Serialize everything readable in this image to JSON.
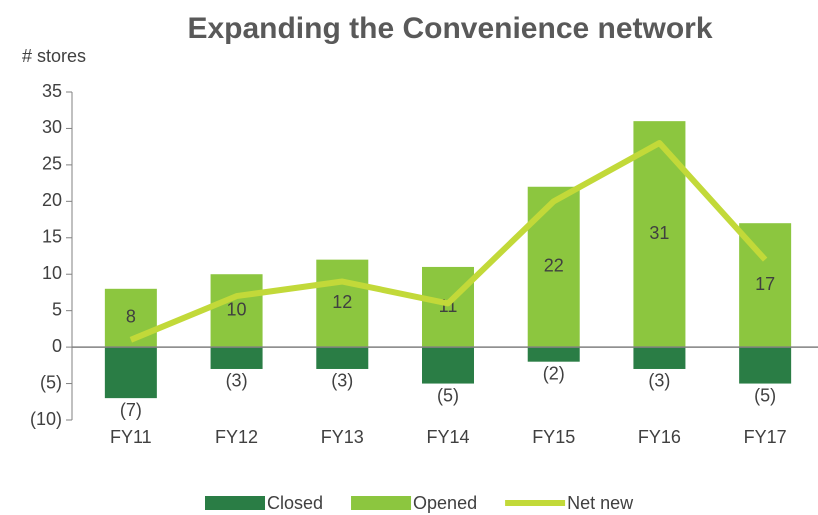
{
  "chart_data": {
    "type": "bar",
    "title": "Expanding the Convenience network",
    "y_label": "# stores",
    "categories": [
      "FY11",
      "FY12",
      "FY13",
      "FY14",
      "FY15",
      "FY16",
      "FY17"
    ],
    "series": [
      {
        "name": "Closed",
        "color": "#2a7d45",
        "values": [
          -7,
          -3,
          -3,
          -5,
          -2,
          -3,
          -5
        ],
        "value_labels": [
          "(7)",
          "(3)",
          "(3)",
          "(5)",
          "(2)",
          "(3)",
          "(5)"
        ]
      },
      {
        "name": "Opened",
        "color": "#8cc63f",
        "values": [
          8,
          10,
          12,
          11,
          22,
          31,
          17
        ]
      },
      {
        "name": "Net new",
        "type": "line",
        "color": "#c2d939",
        "values": [
          1,
          7,
          9,
          6,
          20,
          28,
          12
        ]
      }
    ],
    "ylim": [
      -10,
      35
    ],
    "yticks": [
      {
        "value": -10,
        "label": "(10)"
      },
      {
        "value": -5,
        "label": "(5)"
      },
      0,
      5,
      10,
      15,
      20,
      25,
      30,
      35
    ],
    "grid": false,
    "legend": "bottom"
  }
}
